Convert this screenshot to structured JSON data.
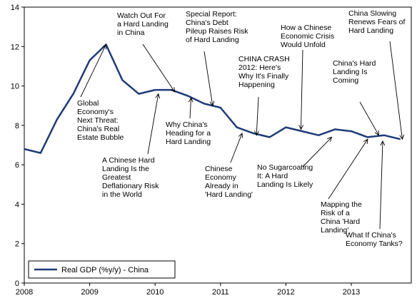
{
  "chart_data": {
    "type": "line",
    "title": "",
    "xlabel": "",
    "ylabel": "",
    "ylim": [
      0,
      14
    ],
    "xlim": [
      2008,
      2013.917
    ],
    "x_ticks": [
      "2008",
      "2009",
      "2010",
      "2011",
      "2012",
      "2013"
    ],
    "y_ticks": [
      "0",
      "2",
      "4",
      "6",
      "8",
      "10",
      "12",
      "14"
    ],
    "grid": false,
    "legend": {
      "position": "bottom-left",
      "entries": [
        "Real GDP (%y/y) - China"
      ]
    },
    "series": [
      {
        "name": "Real GDP (%y/y) - China",
        "color": "#1f3b78",
        "points": [
          [
            2008.0,
            6.8
          ],
          [
            2008.25,
            6.6
          ],
          [
            2008.5,
            8.3
          ],
          [
            2008.75,
            9.6
          ],
          [
            2009.0,
            11.3
          ],
          [
            2009.25,
            12.1
          ],
          [
            2009.5,
            10.3
          ],
          [
            2009.75,
            9.6
          ],
          [
            2010.0,
            9.8
          ],
          [
            2010.25,
            9.8
          ],
          [
            2010.5,
            9.5
          ],
          [
            2010.75,
            9.1
          ],
          [
            2011.0,
            8.9
          ],
          [
            2011.25,
            7.9
          ],
          [
            2011.5,
            7.6
          ],
          [
            2011.75,
            7.4
          ],
          [
            2012.0,
            7.9
          ],
          [
            2012.25,
            7.7
          ],
          [
            2012.5,
            7.5
          ],
          [
            2012.75,
            7.8
          ],
          [
            2013.0,
            7.7
          ],
          [
            2013.25,
            7.4
          ],
          [
            2013.5,
            7.5
          ],
          [
            2013.75,
            7.3
          ]
        ]
      }
    ],
    "annotations": [
      {
        "lines": [
          "Global",
          "Economy's",
          "Next Threat:",
          "China's Real",
          "Estate Bubble"
        ],
        "arrow_to": [
          2009.25,
          12.1
        ]
      },
      {
        "lines": [
          "Watch Out For",
          "a Hard Landing",
          "in China"
        ],
        "arrow_to": [
          2010.3,
          9.7
        ]
      },
      {
        "lines": [
          "A Chinese Hard",
          "Landing Is the",
          "Greatest",
          "Deflationary Risk",
          "in the World"
        ],
        "arrow_to": [
          2010.05,
          9.6
        ]
      },
      {
        "lines": [
          "Why China's",
          "Heading for a",
          "Hard Landing"
        ],
        "arrow_to": [
          2010.55,
          9.4
        ]
      },
      {
        "lines": [
          "Special Report:",
          "China's Debt",
          "Pileup Raises Risk",
          "of Hard Landing"
        ],
        "arrow_to": [
          2010.88,
          9.0
        ]
      },
      {
        "lines": [
          "CHINA CRASH",
          "2012: Here's",
          "Why It's Finally",
          "Happening"
        ],
        "arrow_to": [
          2011.55,
          7.5
        ]
      },
      {
        "lines": [
          "Chinese",
          "Economy",
          "Already in",
          "'Hard Landing'"
        ],
        "arrow_to": [
          2011.33,
          7.6
        ]
      },
      {
        "lines": [
          "How a Chinese",
          "Economic Crisis",
          "Would Unfold"
        ],
        "arrow_to": [
          2012.23,
          7.8
        ]
      },
      {
        "lines": [
          "No Sugarcoating",
          "It: A Hard",
          "Landing Is Likely"
        ],
        "arrow_to": [
          2012.7,
          7.4
        ]
      },
      {
        "lines": [
          "China's Hard",
          "Landing Is",
          "Coming"
        ],
        "arrow_to": [
          2013.42,
          7.5
        ]
      },
      {
        "lines": [
          "China Slowing",
          "Renews Fears of",
          "Hard Landing"
        ],
        "arrow_to": [
          2013.78,
          7.3
        ]
      },
      {
        "lines": [
          "Mapping the",
          "Risk of a",
          "China 'Hard",
          "Landing'"
        ],
        "arrow_to": [
          2013.25,
          7.3
        ]
      },
      {
        "lines": [
          "What If China's",
          "Economy Tanks?"
        ],
        "arrow_to": [
          2013.48,
          7.2
        ]
      }
    ]
  }
}
